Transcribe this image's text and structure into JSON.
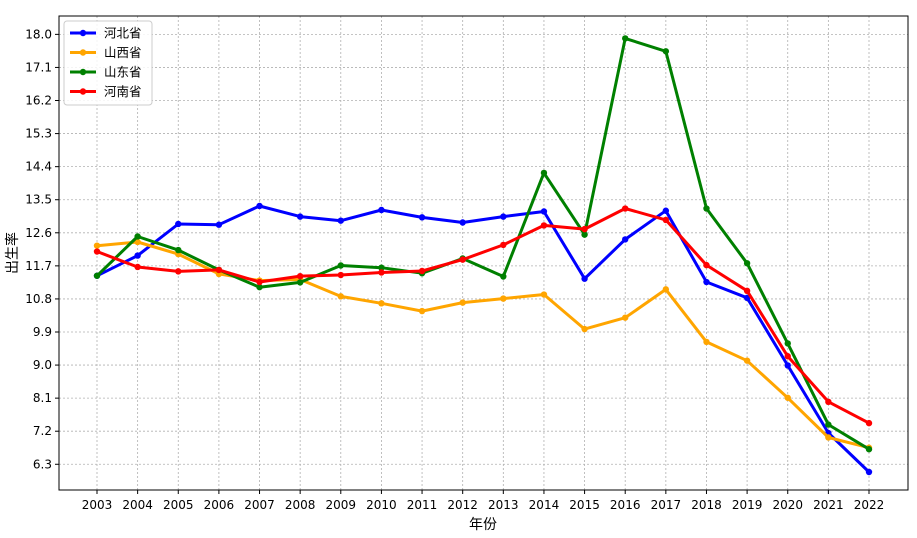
{
  "chart_data": {
    "type": "line",
    "title": "",
    "xlabel": "年份",
    "ylabel": "出生率",
    "x": [
      "2003",
      "2004",
      "2005",
      "2006",
      "2007",
      "2008",
      "2009",
      "2010",
      "2011",
      "2012",
      "2013",
      "2014",
      "2015",
      "2016",
      "2017",
      "2018",
      "2019",
      "2020",
      "2021",
      "2022"
    ],
    "yticks": [
      "6.3",
      "7.2",
      "8.1",
      "9.0",
      "9.9",
      "10.8",
      "11.7",
      "12.6",
      "13.5",
      "14.4",
      "15.3",
      "16.2",
      "17.1",
      "18.0"
    ],
    "ylim": [
      5.6,
      18.5
    ],
    "grid": true,
    "legend_position": "top-left",
    "series": [
      {
        "name": "河北省",
        "color": "#0000ff",
        "values": [
          11.43,
          11.98,
          12.84,
          12.82,
          13.33,
          13.04,
          12.93,
          13.22,
          13.02,
          12.88,
          13.04,
          13.18,
          11.35,
          12.42,
          13.2,
          11.26,
          10.83,
          8.99,
          7.15,
          6.09
        ]
      },
      {
        "name": "山西省",
        "color": "#ffa500",
        "values": [
          12.25,
          12.35,
          12.02,
          11.48,
          11.3,
          11.33,
          10.87,
          10.68,
          10.47,
          10.7,
          10.81,
          10.92,
          9.98,
          10.29,
          11.06,
          9.63,
          9.12,
          8.11,
          7.03,
          6.75
        ]
      },
      {
        "name": "山东省",
        "color": "#008000",
        "values": [
          11.43,
          12.5,
          12.13,
          11.59,
          11.12,
          11.25,
          11.71,
          11.65,
          11.5,
          11.9,
          11.41,
          14.23,
          12.55,
          17.89,
          17.54,
          13.26,
          11.77,
          9.59,
          7.38,
          6.71
        ]
      },
      {
        "name": "河南省",
        "color": "#ff0000",
        "values": [
          12.09,
          11.67,
          11.55,
          11.59,
          11.26,
          11.42,
          11.45,
          11.52,
          11.56,
          11.87,
          12.27,
          12.8,
          12.7,
          13.26,
          12.95,
          11.72,
          11.02,
          9.24,
          8.0,
          7.42
        ]
      }
    ]
  }
}
